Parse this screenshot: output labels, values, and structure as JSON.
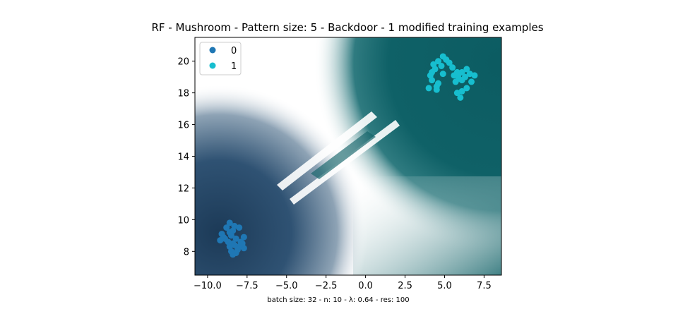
{
  "chart_data": {
    "type": "scatter",
    "title": "RF - Mushroom - Pattern size: 5 - Backdoor - 1 modified training examples",
    "caption": "batch size: 32 - n: 10 - λ: 0.64 - res: 100",
    "xlabel": "",
    "ylabel": "",
    "xlim": [
      -10.8,
      8.6
    ],
    "ylim": [
      6.5,
      21.5
    ],
    "x_ticks": [
      -10.0,
      -7.5,
      -5.0,
      -2.5,
      0.0,
      2.5,
      5.0,
      7.5
    ],
    "x_tick_labels": [
      "−10.0",
      "−7.5",
      "−5.0",
      "−2.5",
      "0.0",
      "2.5",
      "5.0",
      "7.5"
    ],
    "y_ticks": [
      8,
      10,
      12,
      14,
      16,
      18,
      20
    ],
    "y_tick_labels": [
      "8",
      "10",
      "12",
      "14",
      "16",
      "18",
      "20"
    ],
    "grid": false,
    "legend_position": "top-left",
    "background": "decision surface: class 0 region lower-left (dark navy), class 1 region upper-right (dark teal), white boundary band, diagonal backdoor streaks near x≈-3, y≈13",
    "colors": {
      "class0": "#1f77b4",
      "class1": "#17becf",
      "region0": "#2b4d6b",
      "region1": "#0f6167"
    },
    "series": [
      {
        "name": "0",
        "color": "#1f77b4",
        "points": [
          [
            -8.6,
            9.8
          ],
          [
            -8.3,
            9.6
          ],
          [
            -8.0,
            9.5
          ],
          [
            -8.8,
            9.5
          ],
          [
            -8.4,
            9.3
          ],
          [
            -9.1,
            9.1
          ],
          [
            -8.5,
            9.0
          ],
          [
            -7.7,
            8.9
          ],
          [
            -8.9,
            8.8
          ],
          [
            -8.2,
            8.8
          ],
          [
            -9.2,
            8.7
          ],
          [
            -8.7,
            8.6
          ],
          [
            -7.9,
            8.6
          ],
          [
            -8.4,
            8.5
          ],
          [
            -8.6,
            8.3
          ],
          [
            -8.0,
            8.3
          ],
          [
            -7.7,
            8.2
          ],
          [
            -8.1,
            8.1
          ],
          [
            -8.5,
            8.0
          ],
          [
            -8.2,
            7.9
          ],
          [
            -8.4,
            7.8
          ],
          [
            -9.0,
            8.9
          ],
          [
            -8.3,
            8.4
          ],
          [
            -7.8,
            8.5
          ],
          [
            -8.6,
            9.2
          ]
        ]
      },
      {
        "name": "1",
        "color": "#17becf",
        "points": [
          [
            4.9,
            20.3
          ],
          [
            5.1,
            20.1
          ],
          [
            4.6,
            20.0
          ],
          [
            4.3,
            19.8
          ],
          [
            5.3,
            19.9
          ],
          [
            4.8,
            19.7
          ],
          [
            5.5,
            19.6
          ],
          [
            4.4,
            19.5
          ],
          [
            6.4,
            19.5
          ],
          [
            4.2,
            19.3
          ],
          [
            5.8,
            19.3
          ],
          [
            6.1,
            19.3
          ],
          [
            4.9,
            19.2
          ],
          [
            6.6,
            19.2
          ],
          [
            6.9,
            19.1
          ],
          [
            4.1,
            19.1
          ],
          [
            5.6,
            19.1
          ],
          [
            6.3,
            19.0
          ],
          [
            5.9,
            18.9
          ],
          [
            4.2,
            18.8
          ],
          [
            5.7,
            18.7
          ],
          [
            6.1,
            18.8
          ],
          [
            6.7,
            18.7
          ],
          [
            4.6,
            18.6
          ],
          [
            4.5,
            18.4
          ],
          [
            4.0,
            18.3
          ],
          [
            4.5,
            18.2
          ],
          [
            6.4,
            18.3
          ],
          [
            6.1,
            18.1
          ],
          [
            5.8,
            18.0
          ],
          [
            6.0,
            17.7
          ],
          [
            5.9,
            19.2
          ]
        ]
      }
    ]
  }
}
